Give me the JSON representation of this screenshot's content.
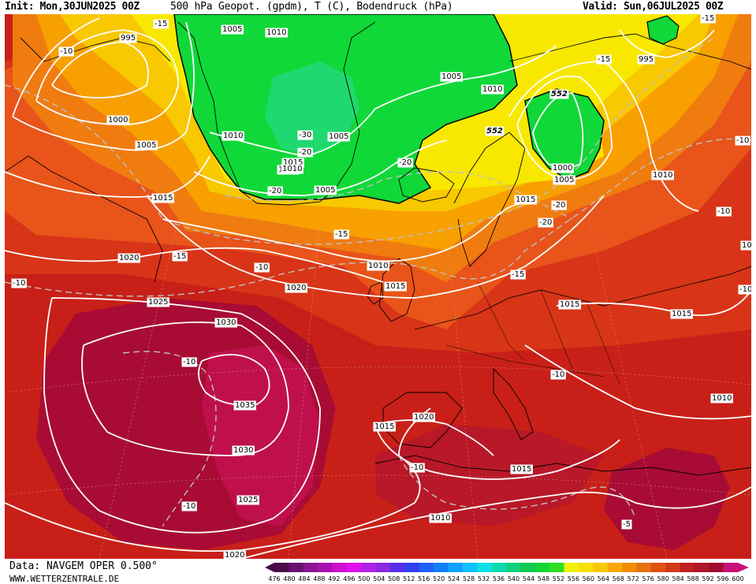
{
  "header": {
    "init": "Init: Mon,30JUN2025 00Z",
    "title": "500 hPa Geopot. (gpdm), T (C), Bodendruck (hPa)",
    "valid": "Valid: Sun,06JUL2025 00Z"
  },
  "footer": {
    "data_source": "Data: NAVGEM OPER 0.500°",
    "site": "WWW.WETTERZENTRALE.DE"
  },
  "colorbar": {
    "levels": [
      "476",
      "480",
      "484",
      "488",
      "492",
      "496",
      "500",
      "504",
      "508",
      "512",
      "516",
      "520",
      "524",
      "528",
      "532",
      "536",
      "540",
      "544",
      "548",
      "552",
      "556",
      "560",
      "564",
      "568",
      "572",
      "576",
      "580",
      "584",
      "588",
      "592",
      "596",
      "600"
    ],
    "colors": [
      "#4a0a4a",
      "#6a1070",
      "#8a1590",
      "#aa10b0",
      "#cc10d0",
      "#e010f0",
      "#b020e8",
      "#8a2be2",
      "#5a2ee6",
      "#3040f0",
      "#2060ff",
      "#1080ff",
      "#10a0ff",
      "#10c0ff",
      "#10e0e8",
      "#10d8b0",
      "#10d080",
      "#10c850",
      "#10d830",
      "#30e020",
      "#f0f000",
      "#f8e000",
      "#f8c800",
      "#f8a800",
      "#f08c00",
      "#e87010",
      "#e05010",
      "#d03818",
      "#c02020",
      "#b01828",
      "#a00c30",
      "#c8107a"
    ]
  },
  "isobars": [
    "995",
    "1000",
    "1005",
    "1010",
    "1015",
    "1020",
    "1025",
    "1030",
    "1035",
    "-10",
    "-15",
    "-20",
    "-30",
    "552"
  ],
  "map_labels": [
    {
      "id": "p995a",
      "text": "995"
    },
    {
      "id": "p1000a",
      "text": "1000"
    },
    {
      "id": "p1005a",
      "text": "1005"
    },
    {
      "id": "p1015a",
      "text": "1015"
    },
    {
      "id": "p1020a",
      "text": "1020"
    },
    {
      "id": "p1025a",
      "text": "1025"
    },
    {
      "id": "p1030a",
      "text": "1030"
    },
    {
      "id": "p1035a",
      "text": "1035"
    },
    {
      "id": "p1030b",
      "text": "1030"
    },
    {
      "id": "p1025b",
      "text": "1025"
    },
    {
      "id": "p1020b",
      "text": "1020"
    },
    {
      "id": "p1005b",
      "text": "1005"
    },
    {
      "id": "p1010b",
      "text": "1010"
    },
    {
      "id": "p1010c",
      "text": "1010"
    },
    {
      "id": "p1005c",
      "text": "1005"
    },
    {
      "id": "p1005d",
      "text": "1005"
    },
    {
      "id": "p1015b",
      "text": "1015"
    },
    {
      "id": "p1005e",
      "text": "1005"
    },
    {
      "id": "p1010d",
      "text": "1010"
    },
    {
      "id": "p1005f",
      "text": "1005"
    },
    {
      "id": "p1010e",
      "text": "1010"
    },
    {
      "id": "p1020c",
      "text": "1020"
    },
    {
      "id": "p1010f",
      "text": "1010"
    },
    {
      "id": "p1015c",
      "text": "1015"
    },
    {
      "id": "p1000b",
      "text": "1000"
    },
    {
      "id": "p1005g",
      "text": "1005"
    },
    {
      "id": "p995b",
      "text": "995"
    },
    {
      "id": "p1010g",
      "text": "1010"
    },
    {
      "id": "p1015d",
      "text": "1015"
    },
    {
      "id": "p1015e",
      "text": "1015"
    },
    {
      "id": "p1015f",
      "text": "1015"
    },
    {
      "id": "p1010h",
      "text": "1010"
    },
    {
      "id": "p1020d",
      "text": "1020"
    },
    {
      "id": "p1015g",
      "text": "1015"
    },
    {
      "id": "p1015h",
      "text": "1015"
    },
    {
      "id": "p1010i",
      "text": "1010"
    },
    {
      "id": "p10j",
      "text": "10"
    },
    {
      "id": "t10a",
      "text": "-10"
    },
    {
      "id": "t15a",
      "text": "-15"
    },
    {
      "id": "t10b",
      "text": "-10"
    },
    {
      "id": "t15b",
      "text": "-15"
    },
    {
      "id": "t10c",
      "text": "-10"
    },
    {
      "id": "t10d",
      "text": "-10"
    },
    {
      "id": "t10e",
      "text": "-10"
    },
    {
      "id": "t30a",
      "text": "-30"
    },
    {
      "id": "t20a",
      "text": "-20"
    },
    {
      "id": "t20b",
      "text": "-20"
    },
    {
      "id": "t20c",
      "text": "-20"
    },
    {
      "id": "t15c",
      "text": "-15"
    },
    {
      "id": "t15d",
      "text": "-15"
    },
    {
      "id": "t15e",
      "text": "-15"
    },
    {
      "id": "t10f",
      "text": "-10"
    },
    {
      "id": "t20d",
      "text": "-20"
    },
    {
      "id": "t20e",
      "text": "-20"
    },
    {
      "id": "t15f",
      "text": "-15"
    },
    {
      "id": "t10g",
      "text": "-10"
    },
    {
      "id": "t10h",
      "text": "-10"
    },
    {
      "id": "t10i",
      "text": "-10"
    },
    {
      "id": "t10j",
      "text": "-10"
    },
    {
      "id": "t5a",
      "text": "-5"
    },
    {
      "id": "g552a",
      "text": "552"
    },
    {
      "id": "g552b",
      "text": "552"
    }
  ],
  "colors": {
    "background": "#ffffff",
    "isobar": "#ffffff",
    "isotherm": "#c0c0c0",
    "coastline": "#000000"
  }
}
